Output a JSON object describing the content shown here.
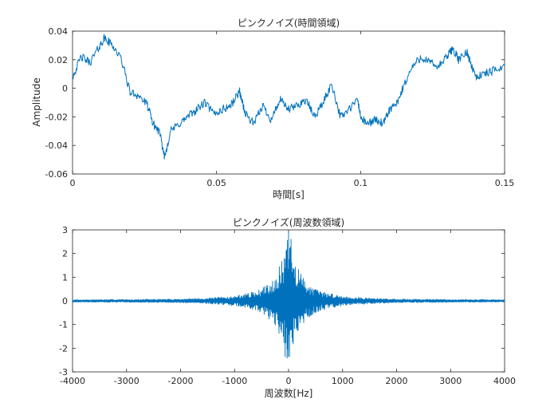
{
  "chart_data": [
    {
      "type": "line",
      "title": "ピンクノイズ(時間領域)",
      "xlabel": "時間[s]",
      "ylabel": "Amplitude",
      "xlim": [
        0,
        0.15
      ],
      "ylim": [
        -0.06,
        0.04
      ],
      "xticks": [
        0,
        0.05,
        0.1,
        0.15
      ],
      "xtick_labels": [
        "0",
        "0.05",
        "0.1",
        "0.15"
      ],
      "yticks": [
        -0.06,
        -0.04,
        -0.02,
        0,
        0.02,
        0.04
      ],
      "ytick_labels": [
        "-0.06",
        "-0.04",
        "-0.02",
        "0",
        "0.02",
        "0.04"
      ],
      "grid": false,
      "color": "#0072BD",
      "series": [
        {
          "x": [
            0,
            0.003,
            0.006,
            0.009,
            0.011,
            0.014,
            0.017,
            0.02,
            0.023,
            0.026,
            0.028,
            0.03,
            0.032,
            0.034,
            0.037,
            0.04,
            0.043,
            0.046,
            0.049,
            0.052,
            0.055,
            0.058,
            0.06,
            0.063,
            0.066,
            0.069,
            0.072,
            0.075,
            0.078,
            0.081,
            0.084,
            0.087,
            0.09,
            0.093,
            0.096,
            0.099,
            0.1,
            0.102,
            0.105,
            0.108,
            0.11,
            0.113,
            0.115,
            0.118,
            0.121,
            0.124,
            0.127,
            0.13,
            0.132,
            0.134,
            0.137,
            0.14,
            0.143,
            0.146,
            0.15
          ],
          "y": [
            0.008,
            0.022,
            0.018,
            0.028,
            0.035,
            0.03,
            0.02,
            -0.003,
            -0.005,
            -0.012,
            -0.025,
            -0.03,
            -0.048,
            -0.03,
            -0.025,
            -0.02,
            -0.015,
            -0.01,
            -0.018,
            -0.015,
            -0.012,
            -0.002,
            -0.018,
            -0.025,
            -0.012,
            -0.022,
            -0.008,
            -0.015,
            -0.012,
            -0.008,
            -0.02,
            -0.01,
            0.003,
            -0.02,
            -0.015,
            -0.008,
            -0.02,
            -0.025,
            -0.022,
            -0.025,
            -0.015,
            -0.01,
            0.002,
            0.015,
            0.022,
            0.018,
            0.015,
            0.022,
            0.028,
            0.02,
            0.025,
            0.008,
            0.01,
            0.012,
            0.016
          ]
        }
      ]
    },
    {
      "type": "line",
      "title": "ピンクノイズ(周波数領域)",
      "xlabel": "周波数[Hz]",
      "ylabel": "",
      "xlim": [
        -4000,
        4000
      ],
      "ylim": [
        -3,
        3
      ],
      "xticks": [
        -4000,
        -3000,
        -2000,
        -1000,
        0,
        1000,
        2000,
        3000,
        4000
      ],
      "xtick_labels": [
        "-4000",
        "-3000",
        "-2000",
        "-1000",
        "0",
        "1000",
        "2000",
        "3000",
        "4000"
      ],
      "yticks": [
        -3,
        -2,
        -1,
        0,
        1,
        2,
        3
      ],
      "ytick_labels": [
        "-3",
        "-2",
        "-1",
        "0",
        "1",
        "2",
        "3"
      ],
      "grid": false,
      "color": "#0072BD",
      "series": [
        {
          "envelope_x": [
            -4000,
            -3000,
            -2000,
            -1500,
            -1000,
            -700,
            -500,
            -300,
            -200,
            -100,
            -50,
            0,
            50,
            100,
            200,
            300,
            500,
            700,
            1000,
            1500,
            2000,
            3000,
            4000
          ],
          "envelope_amplitude": [
            0.05,
            0.06,
            0.08,
            0.12,
            0.2,
            0.35,
            0.5,
            0.9,
            1.3,
            1.8,
            2.6,
            3.0,
            2.6,
            1.8,
            1.3,
            0.9,
            0.5,
            0.35,
            0.2,
            0.12,
            0.08,
            0.06,
            0.05
          ]
        }
      ]
    }
  ]
}
